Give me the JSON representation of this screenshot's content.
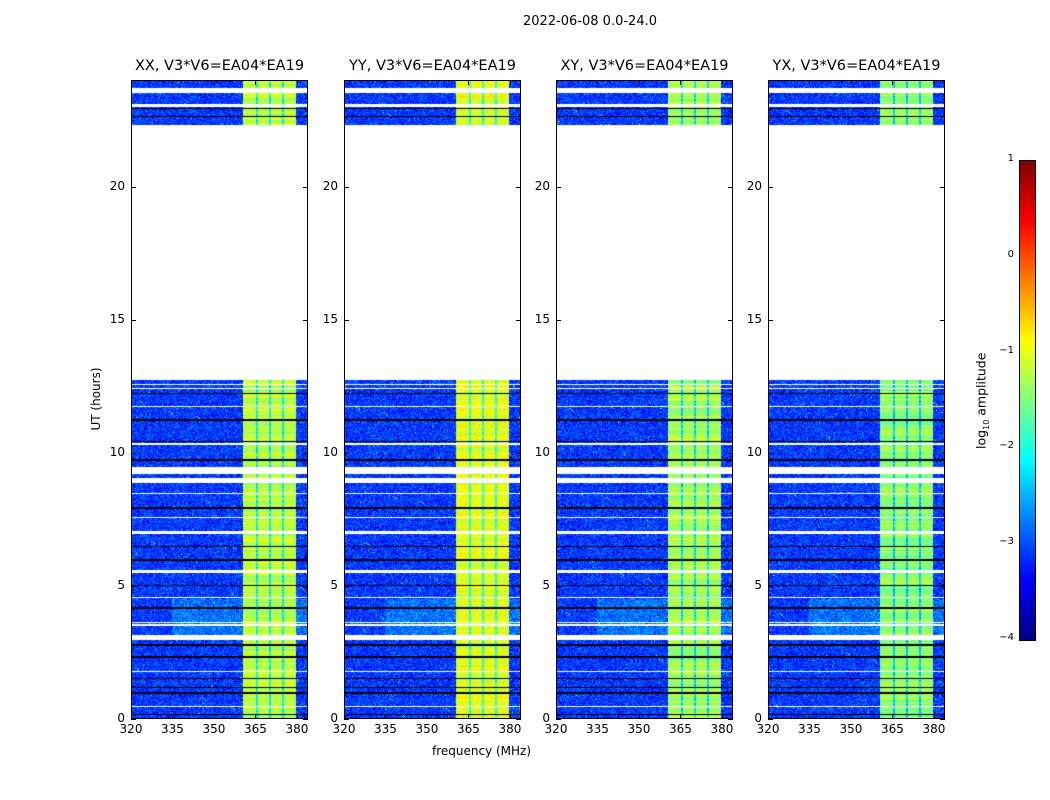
{
  "chart_data": {
    "type": "heatmap",
    "title": "2022-06-08 0.0-24.0",
    "xlabel": "frequency (MHz)",
    "ylabel": "UT (hours)",
    "xlim": [
      320,
      384
    ],
    "ylim": [
      0,
      24
    ],
    "xticks": [
      "320",
      "335",
      "350",
      "365",
      "380"
    ],
    "xtick_values": [
      320,
      335,
      350,
      365,
      380
    ],
    "yticks": [
      "0",
      "5",
      "10",
      "15",
      "20"
    ],
    "ytick_values": [
      0,
      5,
      10,
      15,
      20
    ],
    "panels": [
      {
        "title": "XX, V3*V6=EA04*EA19",
        "band_level": -1.2
      },
      {
        "title": "YY, V3*V6=EA04*EA19",
        "band_level": -1.0
      },
      {
        "title": "XY, V3*V6=EA04*EA19",
        "band_level": -1.3
      },
      {
        "title": "YX, V3*V6=EA04*EA19",
        "band_level": -1.4
      }
    ],
    "data_extent_hours": [
      [
        0,
        12.75
      ],
      [
        22.3,
        24
      ]
    ],
    "bright_band_mhz": [
      360.5,
      379.5
    ],
    "background_level": -3.1,
    "flagged_hours_white": [
      [
        0.45,
        0.5
      ],
      [
        1.75,
        1.8
      ],
      [
        2.95,
        3.15
      ],
      [
        3.5,
        3.55
      ],
      [
        3.6,
        3.65
      ],
      [
        4.55,
        4.6
      ],
      [
        5.5,
        5.6
      ],
      [
        6.95,
        7.05
      ],
      [
        7.55,
        7.6
      ],
      [
        8.45,
        8.5
      ],
      [
        8.85,
        9.05
      ],
      [
        9.2,
        9.45
      ],
      [
        10.3,
        10.35
      ],
      [
        11.7,
        11.75
      ],
      [
        12.4,
        12.45
      ],
      [
        12.55,
        12.6
      ],
      [
        23.0,
        23.1
      ],
      [
        23.5,
        23.7
      ]
    ],
    "flagged_hours_black": [
      [
        0.15,
        0.2
      ],
      [
        0.95,
        1.0
      ],
      [
        1.15,
        1.2
      ],
      [
        1.5,
        1.55
      ],
      [
        2.3,
        2.35
      ],
      [
        2.75,
        2.8
      ],
      [
        4.15,
        4.2
      ],
      [
        5.0,
        5.05
      ],
      [
        5.95,
        6.0
      ],
      [
        6.45,
        6.5
      ],
      [
        7.9,
        7.95
      ],
      [
        9.7,
        9.75
      ],
      [
        10.4,
        10.45
      ],
      [
        11.2,
        11.25
      ],
      [
        12.2,
        12.25
      ],
      [
        22.6,
        22.65
      ],
      [
        22.9,
        22.95
      ]
    ],
    "colorbar": {
      "label": "log10 amplitude",
      "label_main": "log",
      "label_sub": "10",
      "label_rest": " amplitude",
      "range": [
        -4,
        1
      ],
      "ticks": [
        "1",
        "0",
        "−1",
        "−2",
        "−3",
        "−4"
      ],
      "tick_values": [
        1,
        0,
        -1,
        -2,
        -3,
        -4
      ],
      "colormap": "jet"
    }
  }
}
